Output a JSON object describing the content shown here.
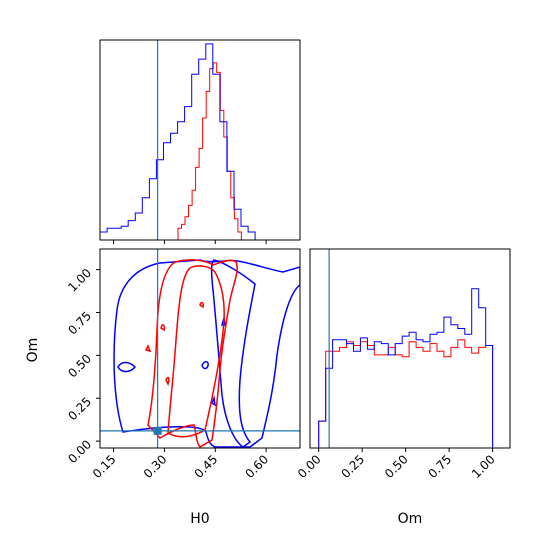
{
  "chart_data": {
    "type": "corner",
    "parameters": [
      "H0",
      "Om"
    ],
    "truth": {
      "H0": 0.28,
      "Om": 0.06,
      "color": "#1f77b4"
    },
    "series_colors": {
      "red": "#ff0000",
      "blue": "#0000ff"
    },
    "panels": [
      {
        "id": "hist-H0",
        "type": "histogram",
        "xlim": [
          0.11,
          0.7
        ],
        "ymax": 1.0,
        "series": [
          {
            "color": "#ff0000",
            "bin_start": 0.34,
            "bin_width": 0.0104,
            "values": [
              0.02,
              0.04,
              0.08,
              0.14,
              0.22,
              0.34,
              0.44,
              0.6,
              0.74,
              0.86,
              0.89,
              0.84,
              0.64,
              0.5,
              0.32,
              0.18,
              0.07,
              0.0
            ]
          },
          {
            "color": "#0000ff",
            "bin_start": 0.11,
            "bin_width": 0.0208,
            "values": [
              0.0,
              0.02,
              0.02,
              0.03,
              0.06,
              0.1,
              0.18,
              0.28,
              0.38,
              0.47,
              0.52,
              0.58,
              0.66,
              0.83,
              0.91,
              0.99,
              0.83,
              0.58,
              0.32,
              0.12,
              0.03,
              0.0
            ]
          }
        ]
      },
      {
        "id": "hist-Om",
        "type": "histogram",
        "xlim": [
          -0.05,
          1.1
        ],
        "ymax": 1.0,
        "series": [
          {
            "color": "#ff0000",
            "bin_start": 0.0,
            "bin_width": 0.04,
            "values": [
              0.1,
              0.47,
              0.47,
              0.49,
              0.52,
              0.5,
              0.52,
              0.5,
              0.45,
              0.45,
              0.49,
              0.45,
              0.44,
              0.52,
              0.49,
              0.47,
              0.51,
              0.47,
              0.44,
              0.49,
              0.53,
              0.49,
              0.46,
              0.49,
              0.5
            ]
          },
          {
            "color": "#0000ff",
            "bin_start": 0.0,
            "bin_width": 0.04,
            "values": [
              0.1,
              0.38,
              0.53,
              0.53,
              0.51,
              0.47,
              0.54,
              0.48,
              0.52,
              0.51,
              0.45,
              0.51,
              0.55,
              0.57,
              0.53,
              0.52,
              0.56,
              0.57,
              0.65,
              0.61,
              0.59,
              0.56,
              0.8,
              0.7,
              0.5
            ]
          }
        ]
      },
      {
        "id": "contour-H0-Om",
        "type": "contour",
        "xlim": [
          0.11,
          0.7
        ],
        "ylim": [
          -0.04,
          1.12
        ],
        "truth_point": [
          0.28,
          0.06
        ]
      }
    ],
    "axes": {
      "H0": {
        "label": "H0",
        "ticks": [
          0.15,
          0.3,
          0.45,
          0.6
        ],
        "tick_labels": [
          "0.15",
          "0.30",
          "0.45",
          "0.60"
        ]
      },
      "Om_y": {
        "label": "Om",
        "ticks": [
          0.0,
          0.25,
          0.5,
          0.75,
          1.0
        ],
        "tick_labels": [
          "0.00",
          "0.25",
          "0.50",
          "0.75",
          "1.00"
        ]
      },
      "Om_x": {
        "label": "Om",
        "ticks": [
          0.0,
          0.25,
          0.5,
          0.75,
          1.0
        ],
        "tick_labels": [
          "0.00",
          "0.25",
          "0.50",
          "0.75",
          "1.00"
        ]
      }
    }
  }
}
